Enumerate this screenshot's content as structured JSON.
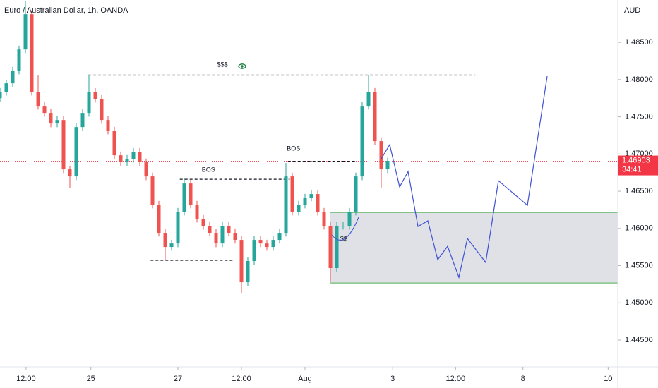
{
  "chart_data": {
    "type": "candlestick",
    "title": "Euro / Australian Dollar, 1h, OANDA",
    "y_axis_label": "AUD",
    "x": [
      0,
      1,
      2,
      3,
      4,
      5,
      6,
      7,
      8,
      9,
      10,
      11,
      12,
      13,
      14,
      15,
      16,
      17,
      18,
      19,
      20,
      21,
      22,
      23,
      24,
      25,
      26,
      27,
      28,
      29,
      30,
      31,
      32,
      33,
      34,
      35,
      36,
      37,
      38,
      39,
      40,
      41,
      42,
      43,
      44,
      45,
      46,
      47,
      48,
      49,
      50,
      51,
      52,
      53,
      54,
      55,
      56,
      57,
      58,
      59,
      60,
      61
    ],
    "open": [
      1.4775,
      1.47836,
      1.4795,
      1.48121,
      1.48405,
      1.48879,
      1.47836,
      1.47647,
      1.47552,
      1.4741,
      1.47457,
      1.46794,
      1.46699,
      1.47362,
      1.47552,
      1.47836,
      1.47742,
      1.47457,
      1.47315,
      1.46983,
      1.46889,
      1.46936,
      1.47031,
      1.46889,
      1.46699,
      1.4632,
      1.45941,
      1.45751,
      1.45798,
      1.46225,
      1.46604,
      1.4632,
      1.4613,
      1.46035,
      1.45941,
      1.45798,
      1.46035,
      1.45941,
      1.45846,
      1.45277,
      1.45562,
      1.45846,
      1.45798,
      1.45751,
      1.45846,
      1.45941,
      1.46699,
      1.46225,
      1.4632,
      1.46415,
      1.46462,
      1.46225,
      1.46035,
      1.45467,
      1.46035,
      1.46035,
      1.46225,
      1.46699,
      1.47647,
      1.47836,
      1.47173,
      1.46794
    ],
    "high": [
      1.47886,
      1.48,
      1.48171,
      1.48455,
      1.4905,
      1.48929,
      1.4806,
      1.47697,
      1.47602,
      1.47507,
      1.47507,
      1.46844,
      1.47412,
      1.47602,
      1.4806,
      1.47886,
      1.47792,
      1.47507,
      1.47365,
      1.47033,
      1.46986,
      1.47081,
      1.47081,
      1.46939,
      1.46749,
      1.4637,
      1.45991,
      1.45848,
      1.46275,
      1.4668,
      1.46654,
      1.4637,
      1.4618,
      1.46085,
      1.45991,
      1.46085,
      1.46085,
      1.45991,
      1.45896,
      1.45612,
      1.45896,
      1.45896,
      1.45848,
      1.45896,
      1.45991,
      1.4688,
      1.46749,
      1.4637,
      1.46465,
      1.46512,
      1.46512,
      1.46275,
      1.46085,
      1.46085,
      1.46085,
      1.46275,
      1.46749,
      1.47697,
      1.4806,
      1.47886,
      1.47223,
      1.4695
    ],
    "low": [
      1.477,
      1.47786,
      1.479,
      1.48071,
      1.48355,
      1.47786,
      1.47597,
      1.47502,
      1.4736,
      1.4736,
      1.46744,
      1.4654,
      1.46649,
      1.47312,
      1.47502,
      1.47692,
      1.47407,
      1.47265,
      1.46933,
      1.46839,
      1.46839,
      1.46886,
      1.46839,
      1.46649,
      1.4627,
      1.45891,
      1.4558,
      1.45701,
      1.45748,
      1.46175,
      1.4627,
      1.4608,
      1.45985,
      1.45891,
      1.45748,
      1.45748,
      1.45891,
      1.45796,
      1.4513,
      1.45227,
      1.45512,
      1.45748,
      1.45701,
      1.45701,
      1.45796,
      1.45891,
      1.46175,
      1.46175,
      1.4627,
      1.46365,
      1.46175,
      1.45985,
      1.4528,
      1.45417,
      1.45985,
      1.45985,
      1.46175,
      1.46649,
      1.47597,
      1.47123,
      1.4655,
      1.46744
    ],
    "close": [
      1.47836,
      1.4795,
      1.48121,
      1.48405,
      1.48879,
      1.47836,
      1.47647,
      1.47552,
      1.4741,
      1.47457,
      1.46794,
      1.46699,
      1.47362,
      1.47552,
      1.47836,
      1.47742,
      1.47457,
      1.47315,
      1.46983,
      1.46889,
      1.46936,
      1.47031,
      1.46889,
      1.46699,
      1.4632,
      1.45941,
      1.45751,
      1.45798,
      1.46225,
      1.46604,
      1.4632,
      1.4613,
      1.46035,
      1.45941,
      1.45798,
      1.46035,
      1.45941,
      1.45846,
      1.45277,
      1.45562,
      1.45846,
      1.45798,
      1.45751,
      1.45846,
      1.45941,
      1.46699,
      1.46225,
      1.4632,
      1.46415,
      1.46462,
      1.46225,
      1.46035,
      1.45467,
      1.46035,
      1.46035,
      1.46225,
      1.46699,
      1.47647,
      1.47836,
      1.47173,
      1.46794,
      1.46908
    ],
    "up_color": "#26a69a",
    "down_color": "#ef5350",
    "xlim": [
      0,
      97.22
    ],
    "xticks": [
      {
        "value": 4.1,
        "label": "12:00"
      },
      {
        "value": 14.3,
        "label": "25"
      },
      {
        "value": 28,
        "label": "27"
      },
      {
        "value": 38,
        "label": "12:00"
      },
      {
        "value": 48,
        "label": "Aug"
      },
      {
        "value": 61.8,
        "label": "3"
      },
      {
        "value": 71.7,
        "label": "12:00"
      },
      {
        "value": 82.3,
        "label": "8"
      },
      {
        "value": 95.7,
        "label": "10"
      }
    ],
    "ylim": [
      1.4414,
      1.4907
    ],
    "yticks": [
      {
        "value": 1.445,
        "label": "1.44500"
      },
      {
        "value": 1.45,
        "label": "1.45000"
      },
      {
        "value": 1.455,
        "label": "1.45500"
      },
      {
        "value": 1.46,
        "label": "1.46000"
      },
      {
        "value": 1.465,
        "label": "1.46500"
      },
      {
        "value": 1.47,
        "label": "1.47000"
      },
      {
        "value": 1.475,
        "label": "1.47500"
      },
      {
        "value": 1.48,
        "label": "1.48000"
      },
      {
        "value": 1.485,
        "label": "1.48500"
      }
    ],
    "price": 1.46903,
    "price_color": "#f23645",
    "countdown": "34:41",
    "levels": [
      {
        "y": 1.4806,
        "x": [
          13.9,
          74.8
        ]
      },
      {
        "y": 1.46661,
        "x": [
          28.3,
          45.6
        ]
      },
      {
        "y": 1.46903,
        "x": [
          45.3,
          56.1
        ]
      },
      {
        "y": 1.45571,
        "x": [
          23.7,
          36.9
        ]
      }
    ],
    "labels": [
      {
        "text": "$$$",
        "x": 35,
        "y": 1.48197
      },
      {
        "text": "BOS",
        "x": 32.8,
        "y": 1.46784
      },
      {
        "text": "BOS",
        "x": 46.2,
        "y": 1.47069
      },
      {
        "text": "$$",
        "x": 54.1,
        "y": 1.45855
      }
    ],
    "zone": {
      "x": [
        51.9,
        97.22
      ],
      "y": [
        1.46215,
        1.45267
      ],
      "color": "#d1d4dc",
      "border": "#4caf50"
    },
    "projection": {
      "color": "#3f51d4",
      "x": [
        60,
        61.33,
        62.89,
        64.22,
        65.78,
        67.33,
        68.89,
        70.44,
        72.22,
        73.56,
        76.44,
        78.44,
        83,
        86.11
      ],
      "y": [
        1.46936,
        1.47125,
        1.46557,
        1.46765,
        1.46026,
        1.46102,
        1.4558,
        1.4576,
        1.45343,
        1.45865,
        1.45542,
        1.46642,
        1.4631,
        1.48045
      ]
    }
  }
}
